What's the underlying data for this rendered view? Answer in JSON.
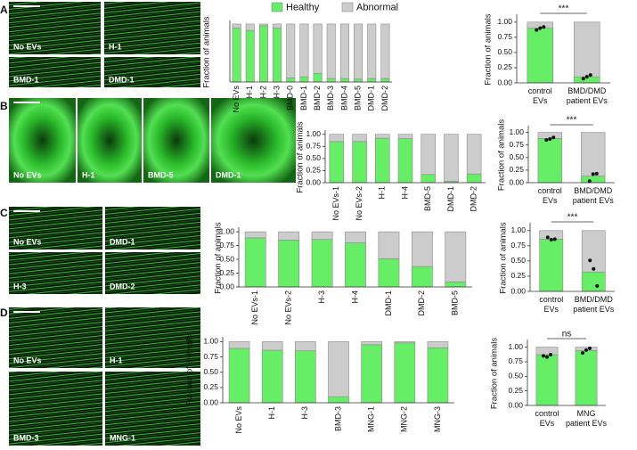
{
  "panels": [
    {
      "label": "A",
      "images": [
        "No EVs",
        "H-1",
        "BMD-1",
        "DMD-1"
      ]
    },
    {
      "label": "B",
      "images": [
        "No EVs",
        "H-1",
        "BMD-5",
        "DMD-1"
      ]
    },
    {
      "label": "C",
      "images": [
        "No EVs",
        "DMD-1",
        "H-3",
        "DMD-2"
      ]
    },
    {
      "label": "D",
      "images": [
        "No EVs",
        "H-1",
        "BMD-3",
        "MNG-1"
      ]
    }
  ],
  "chart_data": [
    {
      "type": "bar",
      "stacked": true,
      "legend": "top",
      "y_label": "Fraction of animals",
      "ylim": [
        0,
        1.03
      ],
      "categories": [
        "No EVs",
        "H-1",
        "H-2",
        "H-3",
        "BMD-0",
        "BMD-1",
        "BMD-2",
        "BMD-3",
        "BMD-4",
        "BMD-5",
        "DMD-1",
        "DMD-2"
      ],
      "series": [
        {
          "name": "Healthy",
          "color": "#66ee66",
          "values": [
            0.93,
            0.89,
            0.97,
            0.93,
            0.07,
            0.09,
            0.15,
            0.06,
            0.06,
            0.05,
            0.06,
            0.06
          ]
        },
        {
          "name": "Abnormal",
          "color": "#cccccc",
          "values": [
            0.07,
            0.11,
            0.03,
            0.07,
            0.93,
            0.91,
            0.85,
            0.94,
            0.94,
            0.95,
            0.94,
            0.94
          ]
        }
      ]
    },
    {
      "type": "bar",
      "stacked": true,
      "y_label": "Fraction of animals",
      "ylim": [
        0,
        1.1
      ],
      "yticks": [
        {
          "value": 0,
          "label": "0.00"
        },
        {
          "value": 0.25,
          "label": "0.25"
        },
        {
          "value": 0.5,
          "label": "0.50"
        },
        {
          "value": 0.75,
          "label": "0.75"
        },
        {
          "value": 1,
          "label": "1.00"
        }
      ],
      "categories": [
        [
          "control",
          "EVs"
        ],
        [
          "BMD/DMD",
          "patient EVs"
        ]
      ],
      "series": [
        {
          "color": "#66ee66",
          "values": [
            0.9,
            0.1
          ]
        },
        {
          "color": "#cccccc",
          "values": [
            0.1,
            0.9
          ]
        }
      ],
      "points": [
        [
          0.87,
          0.9,
          0.92
        ],
        [
          0.07,
          0.1,
          0.13
        ]
      ],
      "annotation": "***"
    },
    {
      "type": "bar",
      "stacked": true,
      "y_label": "Fraction of animals",
      "ylim": [
        0,
        1.05
      ],
      "yticks": [
        {
          "value": 0,
          "label": "0.00"
        },
        {
          "value": 0.25,
          "label": "0.25"
        },
        {
          "value": 0.5,
          "label": "0.50"
        },
        {
          "value": 0.75,
          "label": "0.75"
        },
        {
          "value": 1,
          "label": "1.00"
        }
      ],
      "categories": [
        "No EVs-1",
        "No EVs-2",
        "H-1",
        "H-4",
        "BMD-5",
        "DMD-1",
        "DMD-2"
      ],
      "series": [
        {
          "color": "#66ee66",
          "values": [
            0.85,
            0.85,
            0.92,
            0.91,
            0.17,
            0.03,
            0.18
          ]
        },
        {
          "color": "#cccccc",
          "values": [
            0.15,
            0.15,
            0.08,
            0.09,
            0.83,
            0.97,
            0.82
          ]
        }
      ]
    },
    {
      "type": "bar",
      "stacked": true,
      "y_label": "Fraction of animals",
      "ylim": [
        0,
        1.1
      ],
      "yticks": [
        {
          "value": 0,
          "label": "0.00"
        },
        {
          "value": 0.25,
          "label": "0.25"
        },
        {
          "value": 0.5,
          "label": "0.50"
        },
        {
          "value": 0.75,
          "label": "0.75"
        },
        {
          "value": 1,
          "label": "1.00"
        }
      ],
      "categories": [
        [
          "control",
          "EVs"
        ],
        [
          "BMD/DMD",
          "patient EVs"
        ]
      ],
      "series": [
        {
          "color": "#66ee66",
          "values": [
            0.88,
            0.13
          ]
        },
        {
          "color": "#cccccc",
          "values": [
            0.12,
            0.87
          ]
        }
      ],
      "points": [
        [
          0.85,
          0.87,
          0.9
        ],
        [
          0.03,
          0.17,
          0.18
        ]
      ],
      "annotation": "***"
    },
    {
      "type": "bar",
      "stacked": true,
      "y_label": "Fraction of animals",
      "ylim": [
        0,
        1.05
      ],
      "yticks": [
        {
          "value": 0,
          "label": "0.00"
        },
        {
          "value": 0.25,
          "label": "0.25"
        },
        {
          "value": 0.5,
          "label": "0.50"
        },
        {
          "value": 0.75,
          "label": "0.75"
        },
        {
          "value": 1,
          "label": "1.00"
        }
      ],
      "categories": [
        "No EVs-1",
        "No EVs-2",
        "H-3",
        "H-4",
        "DMD-1",
        "DMD-2",
        "BMD-5"
      ],
      "series": [
        {
          "color": "#66ee66",
          "values": [
            0.89,
            0.85,
            0.86,
            0.8,
            0.51,
            0.37,
            0.09
          ]
        },
        {
          "color": "#cccccc",
          "values": [
            0.11,
            0.15,
            0.14,
            0.2,
            0.49,
            0.63,
            0.91
          ]
        }
      ]
    },
    {
      "type": "bar",
      "stacked": true,
      "y_label": "Fraction of animals",
      "ylim": [
        0,
        1.1
      ],
      "yticks": [
        {
          "value": 0,
          "label": "0.00"
        },
        {
          "value": 0.25,
          "label": "0.25"
        },
        {
          "value": 0.5,
          "label": "0.50"
        },
        {
          "value": 0.75,
          "label": "0.75"
        },
        {
          "value": 1,
          "label": "1.00"
        }
      ],
      "categories": [
        [
          "control",
          "EVs"
        ],
        [
          "BMD/DMD",
          "patient EVs"
        ]
      ],
      "series": [
        {
          "color": "#66ee66",
          "values": [
            0.86,
            0.32
          ]
        },
        {
          "color": "#cccccc",
          "values": [
            0.14,
            0.68
          ]
        }
      ],
      "points": [
        [
          0.89,
          0.85,
          0.86
        ],
        [
          0.51,
          0.37,
          0.09
        ]
      ],
      "annotation": "***"
    },
    {
      "type": "bar",
      "stacked": true,
      "y_label": "Fraction of animals",
      "ylim": [
        0,
        1.05
      ],
      "yticks": [
        {
          "value": 0,
          "label": "0.00"
        },
        {
          "value": 0.25,
          "label": "0.25"
        },
        {
          "value": 0.5,
          "label": "0.50"
        },
        {
          "value": 0.75,
          "label": "0.75"
        },
        {
          "value": 1,
          "label": "1.00"
        }
      ],
      "categories": [
        "No EVs",
        "H-1",
        "H-3",
        "BMD-3",
        "MNG-1",
        "MNG-2",
        "MNG-3"
      ],
      "series": [
        {
          "color": "#66ee66",
          "values": [
            0.89,
            0.86,
            0.85,
            0.1,
            0.95,
            0.98,
            0.9
          ]
        },
        {
          "color": "#cccccc",
          "values": [
            0.11,
            0.14,
            0.15,
            0.9,
            0.05,
            0.02,
            0.1
          ]
        }
      ]
    },
    {
      "type": "bar",
      "stacked": true,
      "y_label": "Fraction of animals",
      "ylim": [
        0,
        1.1
      ],
      "yticks": [
        {
          "value": 0,
          "label": "0.00"
        },
        {
          "value": 0.25,
          "label": "0.25"
        },
        {
          "value": 0.5,
          "label": "0.50"
        },
        {
          "value": 0.75,
          "label": "0.75"
        },
        {
          "value": 1,
          "label": "1.00"
        }
      ],
      "categories": [
        [
          "control",
          "EVs"
        ],
        [
          "MNG",
          "patient EVs"
        ]
      ],
      "series": [
        {
          "color": "#66ee66",
          "values": [
            0.87,
            0.94
          ]
        },
        {
          "color": "#cccccc",
          "values": [
            0.13,
            0.06
          ]
        }
      ],
      "points": [
        [
          0.85,
          0.83,
          0.87
        ],
        [
          0.9,
          0.95,
          0.98
        ]
      ],
      "annotation": "ns"
    }
  ]
}
